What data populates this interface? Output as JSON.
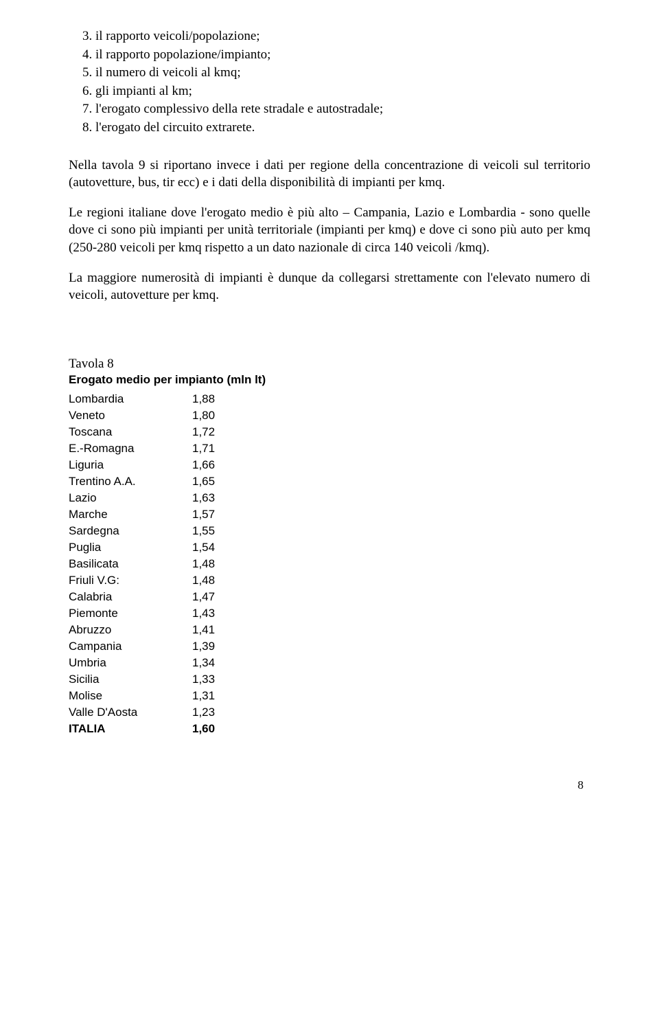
{
  "list": [
    {
      "num": "3.",
      "text": "il rapporto veicoli/popolazione;"
    },
    {
      "num": "4.",
      "text": "il rapporto popolazione/impianto;"
    },
    {
      "num": "5.",
      "text": "il numero di veicoli al kmq;"
    },
    {
      "num": "6.",
      "text": "gli impianti al km;"
    },
    {
      "num": "7.",
      "text": "l'erogato complessivo della rete stradale e autostradale;"
    },
    {
      "num": "8.",
      "text": "l'erogato del circuito extrarete."
    }
  ],
  "para1": "Nella tavola 9 si riportano invece i dati per regione della concentrazione di veicoli sul territorio (autovetture, bus, tir ecc) e i dati della disponibilità di impianti per kmq.",
  "para2": "Le regioni italiane dove l'erogato medio è più alto – Campania, Lazio e Lombardia - sono quelle dove ci sono più impianti per unità territoriale (impianti per kmq) e dove ci sono più auto per kmq (250-280 veicoli per kmq rispetto a un dato nazionale di circa 140 veicoli /kmq).",
  "para3": "La maggiore numerosità di impianti è dunque da collegarsi strettamente con l'elevato numero di veicoli, autovetture per kmq.",
  "table": {
    "title": "Tavola 8",
    "subtitle": "Erogato medio per impianto (mln lt)",
    "rows": [
      {
        "region": "Lombardia",
        "value": "1,88",
        "bold": false
      },
      {
        "region": "Veneto",
        "value": "1,80",
        "bold": false
      },
      {
        "region": "Toscana",
        "value": "1,72",
        "bold": false
      },
      {
        "region": "E.-Romagna",
        "value": "1,71",
        "bold": false
      },
      {
        "region": "Liguria",
        "value": "1,66",
        "bold": false
      },
      {
        "region": "Trentino A.A.",
        "value": "1,65",
        "bold": false
      },
      {
        "region": "Lazio",
        "value": "1,63",
        "bold": false
      },
      {
        "region": "Marche",
        "value": "1,57",
        "bold": false
      },
      {
        "region": "Sardegna",
        "value": "1,55",
        "bold": false
      },
      {
        "region": "Puglia",
        "value": "1,54",
        "bold": false
      },
      {
        "region": "Basilicata",
        "value": "1,48",
        "bold": false
      },
      {
        "region": "Friuli V.G:",
        "value": "1,48",
        "bold": false
      },
      {
        "region": "Calabria",
        "value": "1,47",
        "bold": false
      },
      {
        "region": "Piemonte",
        "value": "1,43",
        "bold": false
      },
      {
        "region": "Abruzzo",
        "value": "1,41",
        "bold": false
      },
      {
        "region": "Campania",
        "value": "1,39",
        "bold": false
      },
      {
        "region": "Umbria",
        "value": "1,34",
        "bold": false
      },
      {
        "region": "Sicilia",
        "value": "1,33",
        "bold": false
      },
      {
        "region": "Molise",
        "value": "1,31",
        "bold": false
      },
      {
        "region": "Valle D'Aosta",
        "value": "1,23",
        "bold": false
      },
      {
        "region": "ITALIA",
        "value": "1,60",
        "bold": true
      }
    ]
  },
  "pageNumber": "8"
}
